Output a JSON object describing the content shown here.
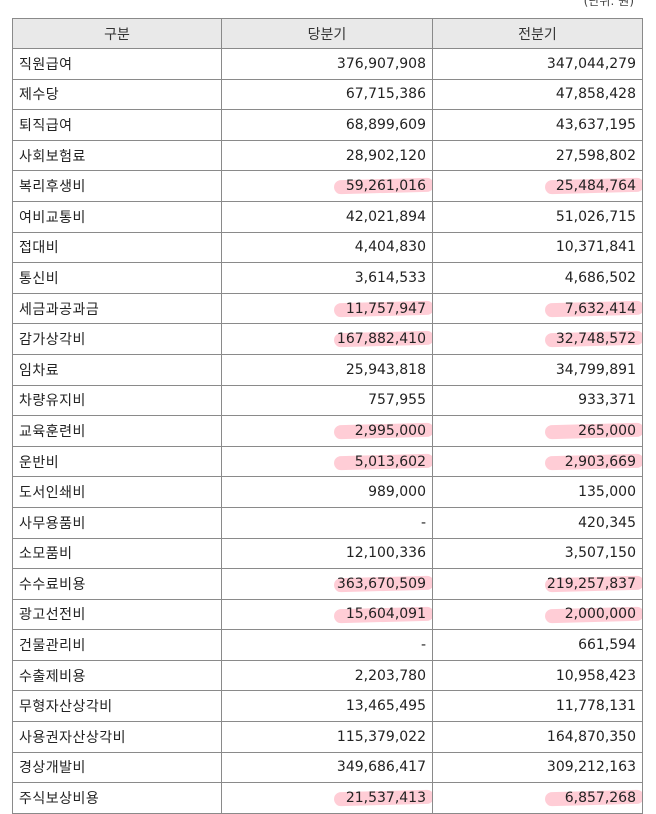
{
  "unit_note": "(단위: 원)",
  "header": {
    "col_item": "구분",
    "col_current": "당분기",
    "col_previous": "전분기"
  },
  "rows": [
    {
      "item": "직원급여",
      "current": "376,907,908",
      "previous": "347,044,279",
      "highlight": false
    },
    {
      "item": "제수당",
      "current": "67,715,386",
      "previous": "47,858,428",
      "highlight": false
    },
    {
      "item": "퇴직급여",
      "current": "68,899,609",
      "previous": "43,637,195",
      "highlight": false
    },
    {
      "item": "사회보험료",
      "current": "28,902,120",
      "previous": "27,598,802",
      "highlight": false
    },
    {
      "item": "복리후생비",
      "current": "59,261,016",
      "previous": "25,484,764",
      "highlight": true
    },
    {
      "item": "여비교통비",
      "current": "42,021,894",
      "previous": "51,026,715",
      "highlight": false
    },
    {
      "item": "접대비",
      "current": "4,404,830",
      "previous": "10,371,841",
      "highlight": false
    },
    {
      "item": "통신비",
      "current": "3,614,533",
      "previous": "4,686,502",
      "highlight": false
    },
    {
      "item": "세금과공과금",
      "current": "11,757,947",
      "previous": "7,632,414",
      "highlight": true
    },
    {
      "item": "감가상각비",
      "current": "167,882,410",
      "previous": "32,748,572",
      "highlight": true
    },
    {
      "item": "임차료",
      "current": "25,943,818",
      "previous": "34,799,891",
      "highlight": false
    },
    {
      "item": "차량유지비",
      "current": "757,955",
      "previous": "933,371",
      "highlight": false
    },
    {
      "item": "교육훈련비",
      "current": "2,995,000",
      "previous": "265,000",
      "highlight": true
    },
    {
      "item": "운반비",
      "current": "5,013,602",
      "previous": "2,903,669",
      "highlight": true
    },
    {
      "item": "도서인쇄비",
      "current": "989,000",
      "previous": "135,000",
      "highlight": false
    },
    {
      "item": "사무용품비",
      "current": "-",
      "previous": "420,345",
      "highlight": false
    },
    {
      "item": "소모품비",
      "current": "12,100,336",
      "previous": "3,507,150",
      "highlight": false
    },
    {
      "item": "수수료비용",
      "current": "363,670,509",
      "previous": "219,257,837",
      "highlight": true
    },
    {
      "item": "광고선전비",
      "current": "15,604,091",
      "previous": "2,000,000",
      "highlight": true
    },
    {
      "item": "건물관리비",
      "current": "-",
      "previous": "661,594",
      "highlight": false
    },
    {
      "item": "수출제비용",
      "current": "2,203,780",
      "previous": "10,958,423",
      "highlight": false
    },
    {
      "item": "무형자산상각비",
      "current": "13,465,495",
      "previous": "11,778,131",
      "highlight": false
    },
    {
      "item": "사용권자산상각비",
      "current": "115,379,022",
      "previous": "164,870,350",
      "highlight": false
    },
    {
      "item": "경상개발비",
      "current": "349,686,417",
      "previous": "309,212,163",
      "highlight": false
    },
    {
      "item": "주식보상비용",
      "current": "21,537,413",
      "previous": "6,857,268",
      "highlight": true
    }
  ],
  "colors": {
    "highlight": "#ff5a78",
    "header_bg": "#e9e9e9",
    "border": "#8a8a8a"
  }
}
